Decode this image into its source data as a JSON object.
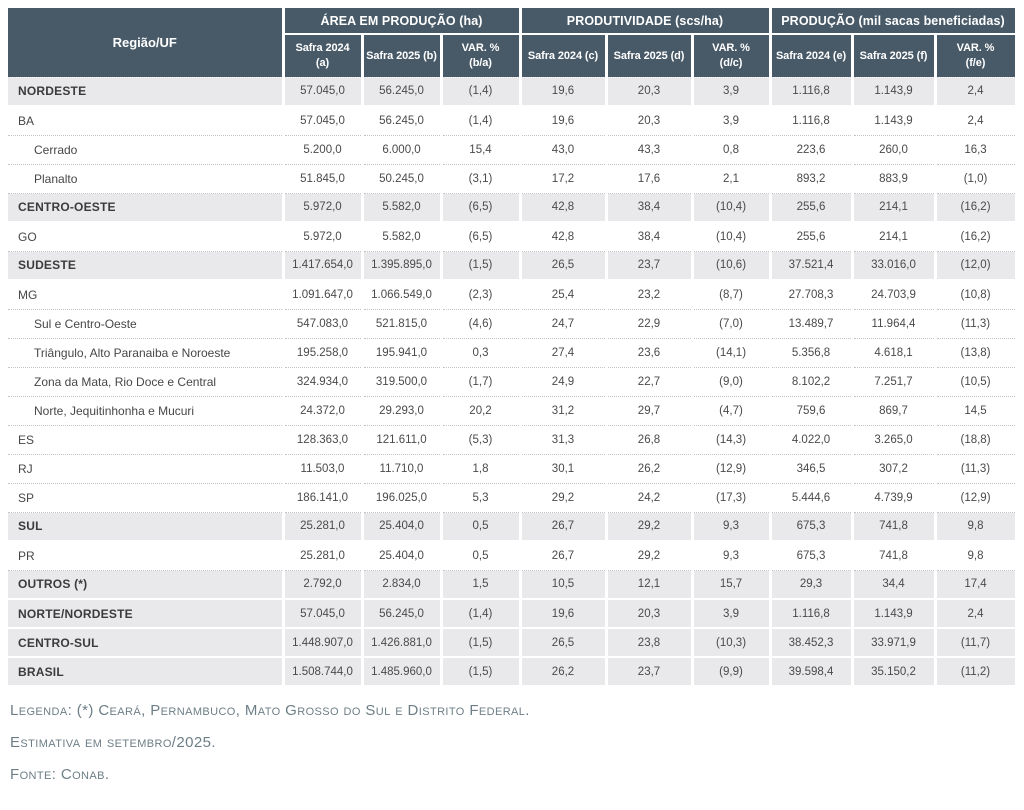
{
  "colors": {
    "header_bg": "#485a68",
    "header_text": "#ffffff",
    "band_row_bg": "#e9e9ec",
    "body_text": "#4a4a4a",
    "row_divider": "#c3c3c6",
    "footer_text": "#6d7e86"
  },
  "table": {
    "corner_label": "Região/UF",
    "groups": [
      {
        "label": "ÁREA EM PRODUÇÃO (ha)",
        "cols": [
          "Safra 2024\n(a)",
          "Safra 2025 (b)",
          "VAR. %\n(b/a)"
        ]
      },
      {
        "label": "PRODUTIVIDADE (scs/ha)",
        "cols": [
          "Safra 2024 (c)",
          "Safra 2025 (d)",
          "VAR. %\n(d/c)"
        ]
      },
      {
        "label": "PRODUÇÃO (mil sacas beneficiadas)",
        "cols": [
          "Safra 2024 (e)",
          "Safra 2025 (f)",
          "VAR. %\n(f/e)"
        ]
      }
    ],
    "rows": [
      {
        "label": "NORDESTE",
        "level": 0,
        "bold": true,
        "values": [
          "57.045,0",
          "56.245,0",
          "(1,4)",
          "19,6",
          "20,3",
          "3,9",
          "1.116,8",
          "1.143,9",
          "2,4"
        ]
      },
      {
        "label": "BA",
        "level": 1,
        "bold": false,
        "values": [
          "57.045,0",
          "56.245,0",
          "(1,4)",
          "19,6",
          "20,3",
          "3,9",
          "1.116,8",
          "1.143,9",
          "2,4"
        ]
      },
      {
        "label": "Cerrado",
        "level": 2,
        "bold": false,
        "values": [
          "5.200,0",
          "6.000,0",
          "15,4",
          "43,0",
          "43,3",
          "0,8",
          "223,6",
          "260,0",
          "16,3"
        ]
      },
      {
        "label": "Planalto",
        "level": 2,
        "bold": false,
        "values": [
          "51.845,0",
          "50.245,0",
          "(3,1)",
          "17,2",
          "17,6",
          "2,1",
          "893,2",
          "883,9",
          "(1,0)"
        ]
      },
      {
        "label": "CENTRO-OESTE",
        "level": 0,
        "bold": true,
        "values": [
          "5.972,0",
          "5.582,0",
          "(6,5)",
          "42,8",
          "38,4",
          "(10,4)",
          "255,6",
          "214,1",
          "(16,2)"
        ]
      },
      {
        "label": "GO",
        "level": 1,
        "bold": false,
        "values": [
          "5.972,0",
          "5.582,0",
          "(6,5)",
          "42,8",
          "38,4",
          "(10,4)",
          "255,6",
          "214,1",
          "(16,2)"
        ]
      },
      {
        "label": "SUDESTE",
        "level": 0,
        "bold": true,
        "values": [
          "1.417.654,0",
          "1.395.895,0",
          "(1,5)",
          "26,5",
          "23,7",
          "(10,6)",
          "37.521,4",
          "33.016,0",
          "(12,0)"
        ]
      },
      {
        "label": "MG",
        "level": 1,
        "bold": false,
        "values": [
          "1.091.647,0",
          "1.066.549,0",
          "(2,3)",
          "25,4",
          "23,2",
          "(8,7)",
          "27.708,3",
          "24.703,9",
          "(10,8)"
        ]
      },
      {
        "label": "Sul e Centro-Oeste",
        "level": 2,
        "bold": false,
        "values": [
          "547.083,0",
          "521.815,0",
          "(4,6)",
          "24,7",
          "22,9",
          "(7,0)",
          "13.489,7",
          "11.964,4",
          "(11,3)"
        ]
      },
      {
        "label": "Triângulo, Alto Paranaiba e Noroeste",
        "level": 2,
        "bold": false,
        "values": [
          "195.258,0",
          "195.941,0",
          "0,3",
          "27,4",
          "23,6",
          "(14,1)",
          "5.356,8",
          "4.618,1",
          "(13,8)"
        ]
      },
      {
        "label": "Zona da Mata, Rio Doce e Central",
        "level": 2,
        "bold": false,
        "values": [
          "324.934,0",
          "319.500,0",
          "(1,7)",
          "24,9",
          "22,7",
          "(9,0)",
          "8.102,2",
          "7.251,7",
          "(10,5)"
        ]
      },
      {
        "label": "Norte, Jequitinhonha e Mucuri",
        "level": 2,
        "bold": false,
        "values": [
          "24.372,0",
          "29.293,0",
          "20,2",
          "31,2",
          "29,7",
          "(4,7)",
          "759,6",
          "869,7",
          "14,5"
        ]
      },
      {
        "label": "ES",
        "level": 1,
        "bold": false,
        "values": [
          "128.363,0",
          "121.611,0",
          "(5,3)",
          "31,3",
          "26,8",
          "(14,3)",
          "4.022,0",
          "3.265,0",
          "(18,8)"
        ]
      },
      {
        "label": "RJ",
        "level": 1,
        "bold": false,
        "values": [
          "11.503,0",
          "11.710,0",
          "1,8",
          "30,1",
          "26,2",
          "(12,9)",
          "346,5",
          "307,2",
          "(11,3)"
        ]
      },
      {
        "label": "SP",
        "level": 1,
        "bold": false,
        "values": [
          "186.141,0",
          "196.025,0",
          "5,3",
          "29,2",
          "24,2",
          "(17,3)",
          "5.444,6",
          "4.739,9",
          "(12,9)"
        ]
      },
      {
        "label": "SUL",
        "level": 0,
        "bold": true,
        "values": [
          "25.281,0",
          "25.404,0",
          "0,5",
          "26,7",
          "29,2",
          "9,3",
          "675,3",
          "741,8",
          "9,8"
        ]
      },
      {
        "label": "PR",
        "level": 1,
        "bold": false,
        "values": [
          "25.281,0",
          "25.404,0",
          "0,5",
          "26,7",
          "29,2",
          "9,3",
          "675,3",
          "741,8",
          "9,8"
        ]
      },
      {
        "label": "OUTROS (*)",
        "level": 0,
        "bold": true,
        "values": [
          "2.792,0",
          "2.834,0",
          "1,5",
          "10,5",
          "12,1",
          "15,7",
          "29,3",
          "34,4",
          "17,4"
        ]
      },
      {
        "label": "NORTE/NORDESTE",
        "level": 0,
        "bold": true,
        "values": [
          "57.045,0",
          "56.245,0",
          "(1,4)",
          "19,6",
          "20,3",
          "3,9",
          "1.116,8",
          "1.143,9",
          "2,4"
        ]
      },
      {
        "label": "CENTRO-SUL",
        "level": 0,
        "bold": true,
        "values": [
          "1.448.907,0",
          "1.426.881,0",
          "(1,5)",
          "26,5",
          "23,8",
          "(10,3)",
          "38.452,3",
          "33.971,9",
          "(11,7)"
        ]
      },
      {
        "label": "BRASIL",
        "level": 0,
        "bold": true,
        "values": [
          "1.508.744,0",
          "1.485.960,0",
          "(1,5)",
          "26,2",
          "23,7",
          "(9,9)",
          "39.598,4",
          "35.150,2",
          "(11,2)"
        ]
      }
    ]
  },
  "footer": {
    "legend": "Legenda: (*) Ceará, Pernambuco, Mato Grosso do Sul e Distrito Federal.",
    "estimate": "Estimativa em setembro/2025.",
    "source": "Fonte: Conab."
  }
}
